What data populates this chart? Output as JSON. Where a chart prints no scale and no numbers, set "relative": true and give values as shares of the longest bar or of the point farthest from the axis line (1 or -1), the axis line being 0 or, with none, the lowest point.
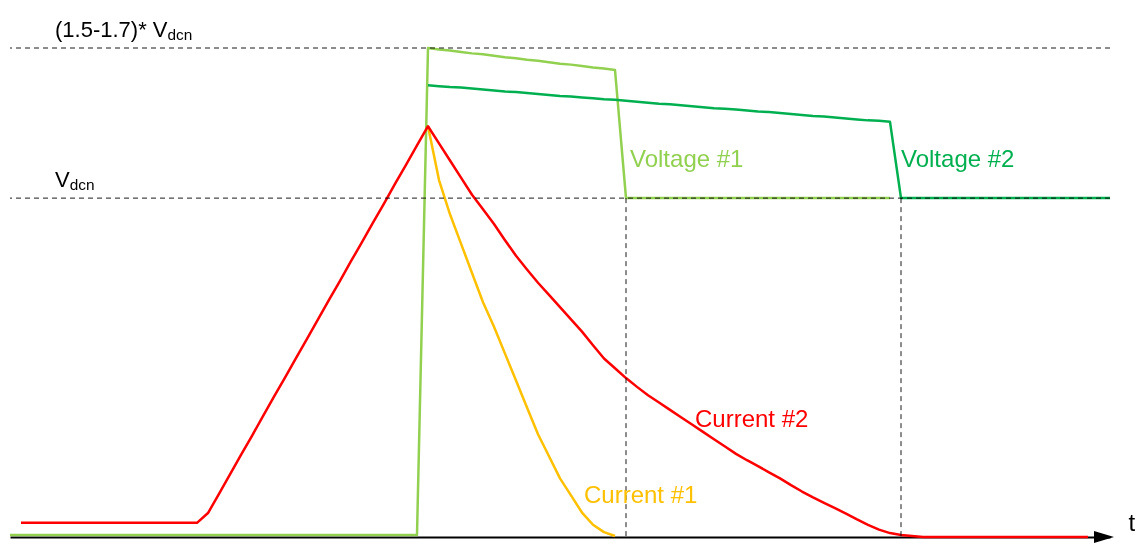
{
  "chart_data": {
    "type": "line",
    "relative": true,
    "xlabel": "t",
    "line_style": "solid",
    "categories": [
      null,
      null,
      null,
      null,
      null,
      null,
      null,
      null,
      null,
      null,
      null,
      null,
      null,
      null,
      null,
      null,
      null,
      null,
      null,
      null,
      null,
      null,
      null,
      null,
      null,
      null,
      null,
      null,
      null,
      null,
      null,
      null,
      null,
      null,
      null,
      null,
      null,
      null,
      null,
      null,
      null,
      null,
      null,
      null,
      null,
      null,
      null,
      null,
      null,
      null,
      null,
      null,
      null,
      null,
      null,
      null,
      null,
      null,
      null,
      null,
      null,
      null,
      null,
      null,
      null,
      null,
      null,
      null,
      null,
      null,
      null,
      null,
      null,
      null,
      null,
      null,
      null,
      null,
      null,
      null,
      null,
      null,
      null,
      null,
      null,
      null,
      null,
      null,
      null,
      null,
      null,
      null,
      null,
      null,
      null,
      null,
      null,
      null,
      null,
      null,
      null
    ],
    "series": [
      {
        "name": "Voltage #1",
        "color": "#92d050",
        "values": [
          0.004,
          0.004,
          0.004,
          0.004,
          0.004,
          0.004,
          0.004,
          0.004,
          0.004,
          0.004,
          0.004,
          0.004,
          0.004,
          0.004,
          0.004,
          0.004,
          0.004,
          0.004,
          0.004,
          0.004,
          0.004,
          0.004,
          0.004,
          0.004,
          0.004,
          0.004,
          0.004,
          0.004,
          0.004,
          0.004,
          0.004,
          0.004,
          0.004,
          0.004,
          0.004,
          0.004,
          0.004,
          0.004,
          1,
          0.997,
          0.995,
          0.992,
          0.989,
          0.987,
          0.984,
          0.981,
          0.979,
          0.976,
          0.974,
          0.971,
          0.968,
          0.966,
          0.963,
          0.96,
          0.958,
          0.955,
          0.693,
          0.693,
          0.693,
          0.693,
          0.693,
          0.693,
          0.693,
          0.693,
          0.693,
          0.693,
          0.693,
          0.693,
          0.693,
          0.693,
          0.693,
          0.693,
          0.693,
          0.693,
          0.693,
          0.693,
          0.693,
          0.693,
          0.693,
          0.693,
          0.693,
          null,
          null,
          null,
          null,
          null,
          null,
          null,
          null,
          null,
          null,
          null,
          null,
          null,
          null,
          null,
          null,
          null,
          null,
          null,
          null
        ]
      },
      {
        "name": "Voltage #2",
        "color": "#00b050",
        "values": [
          null,
          null,
          null,
          null,
          null,
          null,
          null,
          null,
          null,
          null,
          null,
          null,
          null,
          null,
          null,
          null,
          null,
          null,
          null,
          null,
          null,
          null,
          null,
          null,
          null,
          null,
          null,
          null,
          null,
          null,
          null,
          null,
          null,
          null,
          null,
          null,
          null,
          null,
          0.924,
          0.922,
          0.92,
          0.919,
          0.917,
          0.915,
          0.913,
          0.911,
          0.91,
          0.908,
          0.906,
          0.904,
          0.902,
          0.901,
          0.899,
          0.897,
          0.895,
          0.894,
          0.892,
          0.89,
          0.888,
          0.886,
          0.885,
          0.883,
          0.881,
          0.879,
          0.877,
          0.876,
          0.874,
          0.872,
          0.87,
          0.869,
          0.867,
          0.865,
          0.863,
          0.861,
          0.86,
          0.858,
          0.856,
          0.854,
          0.852,
          0.851,
          0.849,
          0.693,
          0.693,
          0.693,
          0.693,
          0.693,
          0.693,
          0.693,
          0.693,
          0.693,
          0.693,
          0.693,
          0.693,
          0.693,
          0.693,
          0.693,
          0.693,
          0.693,
          0.693,
          0.693,
          0.693
        ]
      },
      {
        "name": "Current #1",
        "color": "#ffc000",
        "values": [
          null,
          null,
          null,
          null,
          null,
          null,
          null,
          null,
          null,
          null,
          null,
          null,
          null,
          null,
          null,
          null,
          null,
          null,
          null,
          null,
          null,
          null,
          null,
          null,
          null,
          null,
          null,
          null,
          null,
          null,
          null,
          null,
          null,
          null,
          null,
          null,
          null,
          null,
          0.84,
          0.73,
          0.66,
          0.6,
          0.54,
          0.48,
          0.43,
          0.375,
          0.32,
          0.265,
          0.21,
          0.165,
          0.12,
          0.085,
          0.05,
          0.025,
          0.01,
          0.002,
          null,
          null,
          null,
          null,
          null,
          null,
          null,
          null,
          null,
          null,
          null,
          null,
          null,
          null,
          null,
          null,
          null,
          null,
          null,
          null,
          null,
          null,
          null,
          null,
          null,
          null,
          null,
          null,
          null,
          null,
          null,
          null,
          null,
          null,
          null,
          null,
          null,
          null,
          null,
          null,
          null,
          null,
          null,
          null,
          null
        ]
      },
      {
        "name": "Current #2",
        "color": "#ff0000",
        "values": [
          null,
          0.029,
          0.029,
          0.029,
          0.029,
          0.029,
          0.029,
          0.029,
          0.029,
          0.029,
          0.029,
          0.029,
          0.029,
          0.029,
          0.029,
          0.029,
          0.029,
          0.029,
          0.049,
          0.088,
          0.128,
          0.168,
          0.207,
          0.247,
          0.287,
          0.326,
          0.366,
          0.405,
          0.445,
          0.485,
          0.524,
          0.564,
          0.603,
          0.643,
          0.682,
          0.722,
          0.761,
          0.801,
          0.84,
          0.805,
          0.77,
          0.735,
          0.7,
          0.67,
          0.64,
          0.607,
          0.575,
          0.547,
          0.52,
          0.495,
          0.47,
          0.445,
          0.42,
          0.392,
          0.365,
          0.345,
          0.325,
          0.307,
          0.29,
          0.275,
          0.26,
          0.245,
          0.23,
          0.215,
          0.2,
          0.185,
          0.17,
          0.157,
          0.145,
          0.132,
          0.12,
          0.106,
          0.093,
          0.081,
          0.07,
          0.059,
          0.048,
          0.036,
          0.025,
          0.015,
          0.008,
          0.004,
          0.002,
          0,
          0,
          0,
          0,
          0,
          0,
          0,
          0,
          0,
          0,
          0,
          0,
          0,
          0,
          0,
          0,
          null,
          null
        ]
      }
    ],
    "ref_lines": [
      {
        "axis": "y",
        "value": 1,
        "label": "(1.5-1.7)* V$_{dcn}$",
        "color": "#000000",
        "line_style": "dashed"
      },
      {
        "axis": "y",
        "value": 0.693,
        "label": "V$_{dcn}$",
        "color": "#000000",
        "line_style": "dashed"
      }
    ]
  }
}
